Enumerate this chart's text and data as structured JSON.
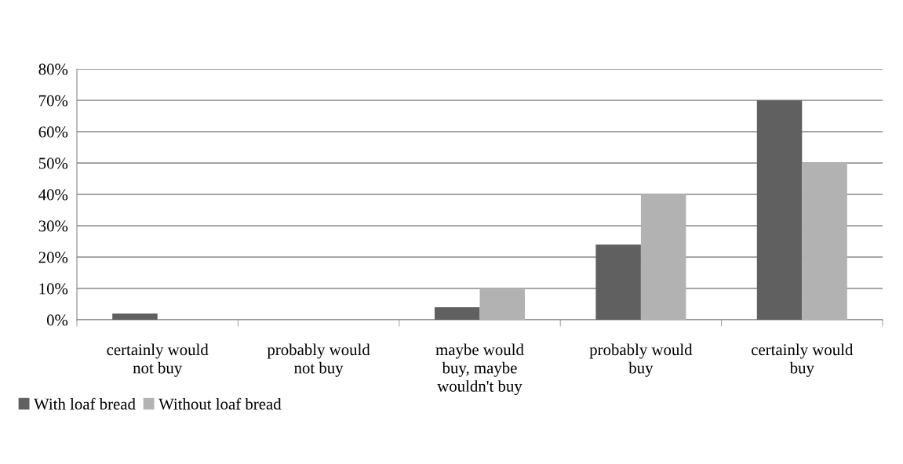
{
  "chart_data": {
    "type": "bar",
    "categories": [
      "certainly would\nnot buy",
      "probably would\nnot buy",
      "maybe would\nbuy, maybe\nwouldn't buy",
      "probably would\nbuy",
      "certainly would\nbuy"
    ],
    "series": [
      {
        "name": "With loaf bread",
        "color": "#606060",
        "values": [
          2,
          0,
          4,
          24,
          70
        ]
      },
      {
        "name": "Without loaf bread",
        "color": "#b2b2b2",
        "values": [
          0,
          0,
          10,
          40,
          50
        ]
      }
    ],
    "ylim": [
      0,
      80
    ],
    "yticks": [
      {
        "value": 0,
        "label": "0%"
      },
      {
        "value": 10,
        "label": "10%"
      },
      {
        "value": 20,
        "label": "20%"
      },
      {
        "value": 30,
        "label": "30%"
      },
      {
        "value": 40,
        "label": "40%"
      },
      {
        "value": 50,
        "label": "50%"
      },
      {
        "value": 60,
        "label": "60%"
      },
      {
        "value": 70,
        "label": "70%"
      },
      {
        "value": 80,
        "label": "80%"
      }
    ],
    "grid": "y",
    "legend": "bottom left"
  }
}
